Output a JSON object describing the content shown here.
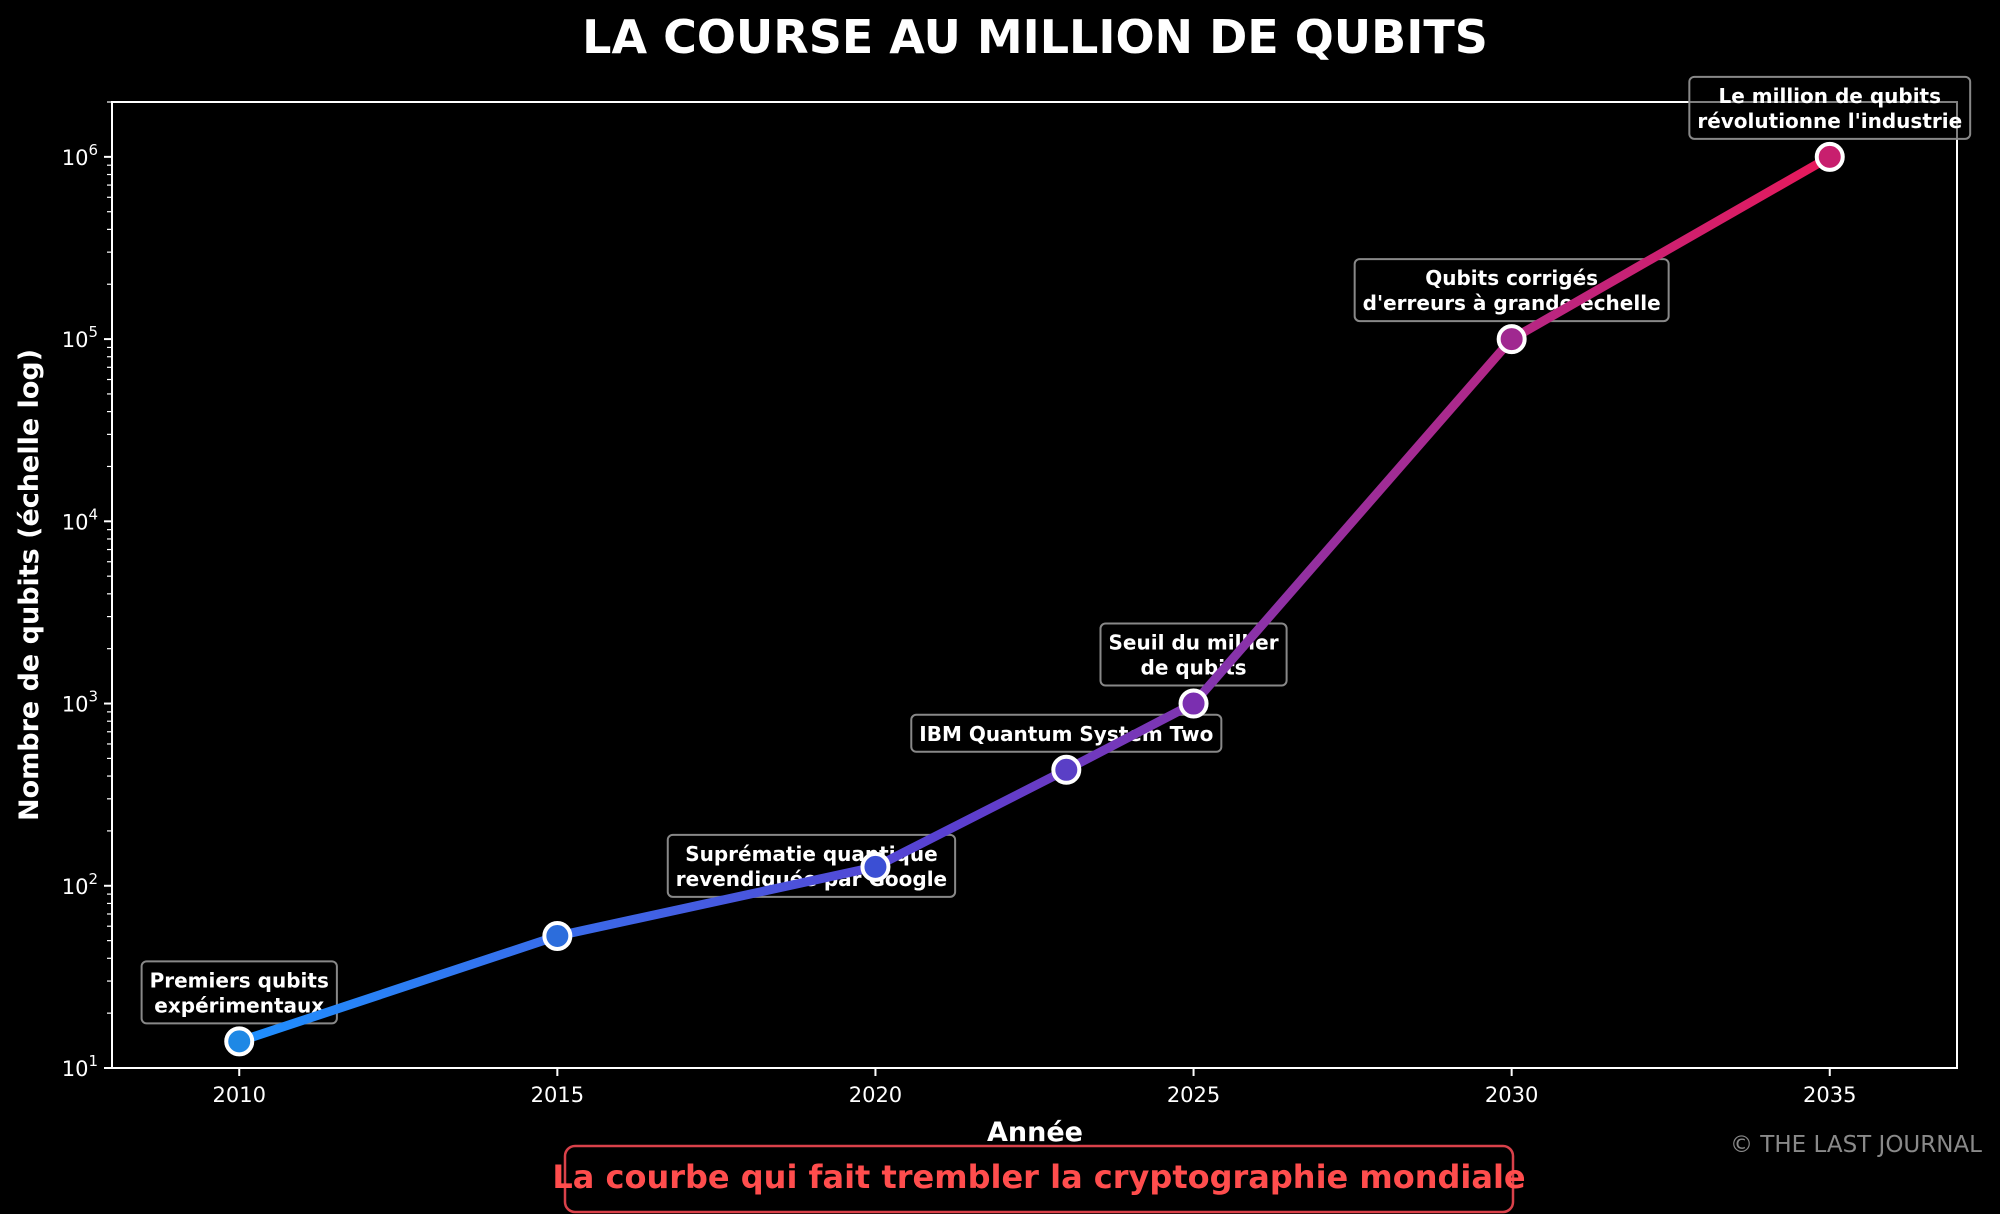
{
  "colors": {
    "background": "#000000",
    "axis": "#ffffff",
    "line_start": "#1e90ff",
    "line_mid": "#5a3fd0",
    "line_end": "#e8195a",
    "subtitle": "#ff4d4d",
    "subtitle_border": "#d9414a",
    "watermark": "#8a8a8a",
    "annotation_border": "#888888"
  },
  "watermark": "© THE LAST JOURNAL",
  "subtitle": "La courbe qui fait trembler la cryptographie mondiale",
  "chart_data": {
    "type": "line",
    "title": "LA COURSE AU MILLION DE QUBITS",
    "xlabel": "Année",
    "ylabel": "Nombre de qubits (échelle log)",
    "yscale": "log",
    "xlim": [
      2008,
      2037
    ],
    "ylim": [
      10,
      2000000
    ],
    "grid": false,
    "x_ticks": [
      2010,
      2015,
      2020,
      2025,
      2030,
      2035
    ],
    "y_ticks": [
      {
        "base": "10",
        "exp": "1",
        "value": 10
      },
      {
        "base": "10",
        "exp": "2",
        "value": 100
      },
      {
        "base": "10",
        "exp": "3",
        "value": 1000
      },
      {
        "base": "10",
        "exp": "4",
        "value": 10000
      },
      {
        "base": "10",
        "exp": "5",
        "value": 100000
      },
      {
        "base": "10",
        "exp": "6",
        "value": 1000000
      }
    ],
    "series": [
      {
        "x": [
          2010,
          2015,
          2020,
          2023,
          2025,
          2030,
          2035
        ],
        "values": [
          14,
          53,
          127,
          433,
          1000,
          100000,
          1000000
        ],
        "point_colors": [
          "#1e88e5",
          "#2c6ddc",
          "#3b4fd4",
          "#5a3fc6",
          "#7b2fb0",
          "#a02890",
          "#c81f6e"
        ]
      }
    ],
    "annotations": [
      {
        "x": 2010,
        "y": 14,
        "lines": [
          "Premiers qubits",
          "expérimentaux"
        ],
        "position": "above"
      },
      {
        "x": 2020,
        "y": 127,
        "lines": [
          "Suprématie quantique",
          "revendiquée par Google"
        ],
        "position": "left"
      },
      {
        "x": 2023,
        "y": 433,
        "lines": [
          "IBM Quantum System Two"
        ],
        "position": "above"
      },
      {
        "x": 2025,
        "y": 1000,
        "lines": [
          "Seuil du millier",
          "de qubits"
        ],
        "position": "above"
      },
      {
        "x": 2030,
        "y": 100000,
        "lines": [
          "Qubits corrigés",
          "d'erreurs à grande échelle"
        ],
        "position": "above"
      },
      {
        "x": 2035,
        "y": 1000000,
        "lines": [
          "Le million de qubits",
          "révolutionne l'industrie"
        ],
        "position": "above"
      }
    ]
  }
}
